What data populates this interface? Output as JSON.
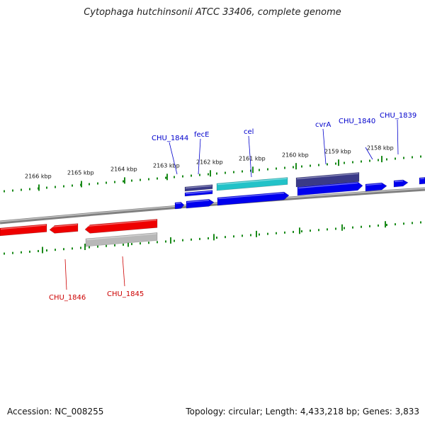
{
  "title": "Cytophaga hutchinsonii ATCC 33406, complete genome",
  "accession": "Accession: NC_008255",
  "summary": "Topology: circular; Length: 4,433,218 bp; Genes: 3,833",
  "kbp_labels": [
    "2166 kbp",
    "2165 kbp",
    "2164 kbp",
    "2163 kbp",
    "2162 kbp",
    "2161 kbp",
    "2160 kbp",
    "2159 kbp",
    "2158 kbp"
  ],
  "gene_labels_top": [
    "CHU_1844",
    "fecE",
    "cel",
    "cvrA",
    "CHU_1840",
    "CHU_1839"
  ],
  "gene_labels_bottom": [
    "CHU_1846",
    "CHU_1845"
  ],
  "colors": {
    "forward_cds": "#0000ee",
    "reverse_cds": "#ee0000",
    "dark_feature": "#3a3a88",
    "cyan_feature": "#22c2c8",
    "grey_feature": "#b8b8b8",
    "backbone": "#808080",
    "ticks": "#1a8a1a",
    "top_label": "#0000cc",
    "bottom_label": "#cc0000"
  }
}
